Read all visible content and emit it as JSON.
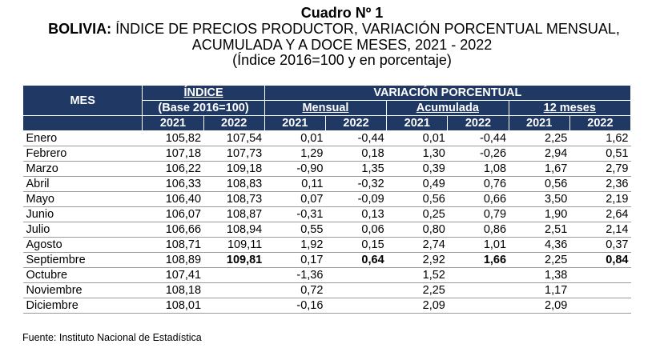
{
  "title": {
    "cuadro": "Cuadro Nº 1",
    "country": "BOLIVIA:",
    "line1_rest": " ÍNDICE DE PRECIOS PRODUCTOR, VARIACIÓN PORCENTUAL MENSUAL,",
    "line2": "ACUMULADA Y A DOCE MESES, 2021 - 2022",
    "line3": "(Índice 2016=100 y en porcentaje)"
  },
  "header": {
    "mes": "MES",
    "indice": "ÍNDICE",
    "base": "(Base 2016=100)",
    "variacion": "VARIACIÓN PORCENTUAL",
    "mensual": "Mensual",
    "acumulada": "Acumulada",
    "doce": "12 meses",
    "y2021": "2021",
    "y2022": "2022"
  },
  "rows": [
    {
      "mes": "Enero",
      "i21": "105,82",
      "i22": "107,54",
      "m21": "0,01",
      "m22": "-0,44",
      "a21": "0,01",
      "a22": "-0,44",
      "d21": "2,25",
      "d22": "1,62"
    },
    {
      "mes": "Febrero",
      "i21": "107,18",
      "i22": "107,73",
      "m21": "1,29",
      "m22": "0,18",
      "a21": "1,30",
      "a22": "-0,26",
      "d21": "2,94",
      "d22": "0,51"
    },
    {
      "mes": "Marzo",
      "i21": "106,22",
      "i22": "109,18",
      "m21": "-0,90",
      "m22": "1,35",
      "a21": "0,39",
      "a22": "1,08",
      "d21": "1,67",
      "d22": "2,79"
    },
    {
      "mes": "Abril",
      "i21": "106,33",
      "i22": "108,83",
      "m21": "0,11",
      "m22": "-0,32",
      "a21": "0,49",
      "a22": "0,76",
      "d21": "0,56",
      "d22": "2,36"
    },
    {
      "mes": "Mayo",
      "i21": "106,40",
      "i22": "108,73",
      "m21": "0,07",
      "m22": "-0,09",
      "a21": "0,56",
      "a22": "0,66",
      "d21": "3,50",
      "d22": "2,19"
    },
    {
      "mes": "Junio",
      "i21": "106,07",
      "i22": "108,87",
      "m21": "-0,31",
      "m22": "0,13",
      "a21": "0,25",
      "a22": "0,79",
      "d21": "1,90",
      "d22": "2,64"
    },
    {
      "mes": "Julio",
      "i21": "106,66",
      "i22": "108,94",
      "m21": "0,55",
      "m22": "0,06",
      "a21": "0,80",
      "a22": "0,86",
      "d21": "2,51",
      "d22": "2,14"
    },
    {
      "mes": "Agosto",
      "i21": "108,71",
      "i22": "109,11",
      "m21": "1,92",
      "m22": "0,15",
      "a21": "2,74",
      "a22": "1,01",
      "d21": "4,36",
      "d22": "0,37"
    },
    {
      "mes": "Septiembre",
      "i21": "108,89",
      "i22": "109,81",
      "m21": "0,17",
      "m22": "0,64",
      "a21": "2,92",
      "a22": "1,66",
      "d21": "2,25",
      "d22": "0,84",
      "bold2022": true
    },
    {
      "mes": "Octubre",
      "i21": "107,41",
      "i22": "",
      "m21": "-1,36",
      "m22": "",
      "a21": "1,52",
      "a22": "",
      "d21": "1,38",
      "d22": ""
    },
    {
      "mes": "Noviembre",
      "i21": "108,18",
      "i22": "",
      "m21": "0,72",
      "m22": "",
      "a21": "2,25",
      "a22": "",
      "d21": "1,17",
      "d22": ""
    },
    {
      "mes": "Diciembre",
      "i21": "108,01",
      "i22": "",
      "m21": "-0,16",
      "m22": "",
      "a21": "2,09",
      "a22": "",
      "d21": "2,09",
      "d22": ""
    }
  ],
  "footer": "Fuente: Instituto Nacional de Estadística",
  "colors": {
    "header_bg": "#1f3864",
    "header_text": "#ffffff",
    "row_rule": "#9a9a9a"
  }
}
